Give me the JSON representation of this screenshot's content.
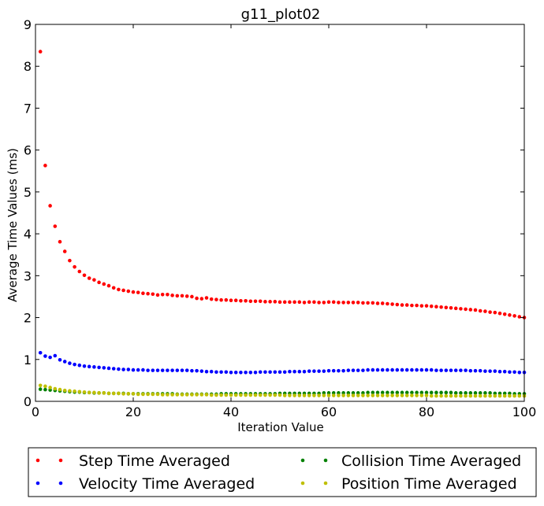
{
  "chart_data": {
    "type": "scatter",
    "title": "g11_plot02",
    "xlabel": "Iteration Value",
    "ylabel": "Average Time Values (ms)",
    "xlim": [
      0,
      100
    ],
    "ylim": [
      0,
      9
    ],
    "xticks": [
      "0",
      "20",
      "40",
      "60",
      "80",
      "100"
    ],
    "yticks": [
      "0",
      "1",
      "2",
      "3",
      "4",
      "5",
      "6",
      "7",
      "8",
      "9"
    ],
    "grid": false,
    "legend_position": "below",
    "x": [
      1,
      2,
      3,
      4,
      5,
      6,
      7,
      8,
      9,
      10,
      11,
      12,
      13,
      14,
      15,
      16,
      17,
      18,
      19,
      20,
      21,
      22,
      23,
      24,
      25,
      26,
      27,
      28,
      29,
      30,
      31,
      32,
      33,
      34,
      35,
      36,
      37,
      38,
      39,
      40,
      41,
      42,
      43,
      44,
      45,
      46,
      47,
      48,
      49,
      50,
      51,
      52,
      53,
      54,
      55,
      56,
      57,
      58,
      59,
      60,
      61,
      62,
      63,
      64,
      65,
      66,
      67,
      68,
      69,
      70,
      71,
      72,
      73,
      74,
      75,
      76,
      77,
      78,
      79,
      80,
      81,
      82,
      83,
      84,
      85,
      86,
      87,
      88,
      89,
      90,
      91,
      92,
      93,
      94,
      95,
      96,
      97,
      98,
      99,
      100
    ],
    "series": [
      {
        "name": "Step Time Averaged",
        "color": "#ff0000",
        "values": [
          8.35,
          5.63,
          4.67,
          4.18,
          3.81,
          3.58,
          3.36,
          3.21,
          3.1,
          3.01,
          2.94,
          2.9,
          2.84,
          2.8,
          2.76,
          2.71,
          2.67,
          2.65,
          2.63,
          2.61,
          2.6,
          2.58,
          2.57,
          2.56,
          2.54,
          2.55,
          2.55,
          2.53,
          2.52,
          2.52,
          2.51,
          2.5,
          2.46,
          2.45,
          2.47,
          2.44,
          2.43,
          2.42,
          2.42,
          2.41,
          2.41,
          2.4,
          2.4,
          2.39,
          2.39,
          2.39,
          2.38,
          2.38,
          2.38,
          2.37,
          2.37,
          2.37,
          2.37,
          2.37,
          2.36,
          2.37,
          2.37,
          2.36,
          2.36,
          2.37,
          2.37,
          2.36,
          2.36,
          2.36,
          2.36,
          2.36,
          2.35,
          2.35,
          2.35,
          2.34,
          2.34,
          2.33,
          2.32,
          2.31,
          2.3,
          2.3,
          2.29,
          2.29,
          2.28,
          2.28,
          2.27,
          2.26,
          2.25,
          2.24,
          2.23,
          2.22,
          2.21,
          2.2,
          2.19,
          2.18,
          2.16,
          2.15,
          2.13,
          2.12,
          2.1,
          2.08,
          2.06,
          2.04,
          2.02,
          2.0
        ]
      },
      {
        "name": "Collision Time Averaged",
        "color": "#008000",
        "values": [
          0.29,
          0.28,
          0.27,
          0.26,
          0.25,
          0.24,
          0.23,
          0.22,
          0.22,
          0.21,
          0.21,
          0.2,
          0.2,
          0.2,
          0.19,
          0.19,
          0.19,
          0.19,
          0.18,
          0.18,
          0.18,
          0.18,
          0.18,
          0.18,
          0.18,
          0.18,
          0.18,
          0.18,
          0.17,
          0.17,
          0.17,
          0.17,
          0.17,
          0.17,
          0.17,
          0.17,
          0.17,
          0.18,
          0.18,
          0.18,
          0.18,
          0.18,
          0.18,
          0.18,
          0.18,
          0.18,
          0.18,
          0.18,
          0.18,
          0.19,
          0.19,
          0.19,
          0.19,
          0.19,
          0.19,
          0.19,
          0.19,
          0.19,
          0.2,
          0.2,
          0.2,
          0.2,
          0.2,
          0.2,
          0.2,
          0.2,
          0.2,
          0.21,
          0.21,
          0.21,
          0.21,
          0.21,
          0.21,
          0.21,
          0.21,
          0.21,
          0.21,
          0.21,
          0.21,
          0.21,
          0.21,
          0.21,
          0.21,
          0.21,
          0.21,
          0.2,
          0.2,
          0.2,
          0.2,
          0.2,
          0.2,
          0.2,
          0.2,
          0.19,
          0.19,
          0.19,
          0.19,
          0.18,
          0.18,
          0.18
        ]
      },
      {
        "name": "Velocity Time Averaged",
        "color": "#0000ff",
        "values": [
          1.16,
          1.08,
          1.05,
          1.09,
          0.99,
          0.95,
          0.91,
          0.88,
          0.86,
          0.84,
          0.83,
          0.82,
          0.81,
          0.8,
          0.79,
          0.78,
          0.77,
          0.76,
          0.76,
          0.75,
          0.75,
          0.75,
          0.74,
          0.74,
          0.74,
          0.74,
          0.74,
          0.74,
          0.74,
          0.74,
          0.74,
          0.73,
          0.73,
          0.72,
          0.71,
          0.71,
          0.7,
          0.7,
          0.7,
          0.69,
          0.69,
          0.69,
          0.69,
          0.69,
          0.69,
          0.7,
          0.7,
          0.7,
          0.7,
          0.7,
          0.7,
          0.71,
          0.71,
          0.71,
          0.71,
          0.72,
          0.72,
          0.72,
          0.72,
          0.73,
          0.73,
          0.73,
          0.73,
          0.74,
          0.74,
          0.74,
          0.74,
          0.75,
          0.75,
          0.75,
          0.75,
          0.75,
          0.75,
          0.75,
          0.75,
          0.75,
          0.75,
          0.75,
          0.75,
          0.75,
          0.75,
          0.74,
          0.74,
          0.74,
          0.74,
          0.74,
          0.74,
          0.74,
          0.73,
          0.73,
          0.73,
          0.72,
          0.72,
          0.72,
          0.71,
          0.71,
          0.7,
          0.7,
          0.69,
          0.69
        ]
      },
      {
        "name": "Position Time Averaged",
        "color": "#bfbf00",
        "values": [
          0.38,
          0.36,
          0.33,
          0.3,
          0.28,
          0.26,
          0.25,
          0.24,
          0.23,
          0.22,
          0.21,
          0.21,
          0.2,
          0.2,
          0.19,
          0.19,
          0.19,
          0.18,
          0.18,
          0.18,
          0.17,
          0.17,
          0.17,
          0.17,
          0.17,
          0.16,
          0.16,
          0.16,
          0.16,
          0.16,
          0.16,
          0.16,
          0.16,
          0.16,
          0.16,
          0.15,
          0.15,
          0.15,
          0.15,
          0.15,
          0.15,
          0.15,
          0.15,
          0.15,
          0.15,
          0.15,
          0.15,
          0.15,
          0.15,
          0.15,
          0.14,
          0.14,
          0.14,
          0.14,
          0.14,
          0.14,
          0.14,
          0.14,
          0.14,
          0.14,
          0.14,
          0.14,
          0.14,
          0.14,
          0.14,
          0.14,
          0.14,
          0.14,
          0.14,
          0.14,
          0.14,
          0.14,
          0.14,
          0.14,
          0.14,
          0.14,
          0.14,
          0.14,
          0.14,
          0.14,
          0.13,
          0.13,
          0.13,
          0.13,
          0.13,
          0.13,
          0.13,
          0.13,
          0.13,
          0.13,
          0.13,
          0.13,
          0.13,
          0.13,
          0.13,
          0.13,
          0.13,
          0.13,
          0.13,
          0.13
        ]
      }
    ]
  }
}
